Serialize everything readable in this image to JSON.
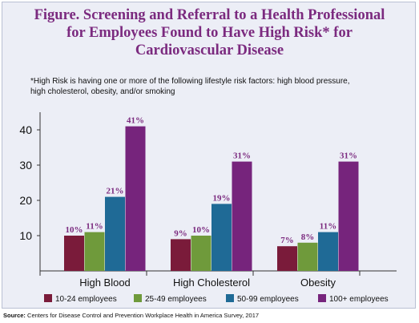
{
  "title_lines": [
    "Figure. Screening and Referral to a Health Professional",
    "for Employees Found to Have High Risk* for",
    "Cardiovascular Disease"
  ],
  "note_lines": [
    "*High Risk is having one or more of the following lifestyle risk factors: high blood pressure,",
    "high cholesterol, obesity, and/or smoking"
  ],
  "source": {
    "label": "Source:",
    "text": "Centers for Disease Control and Prevention Workplace Health in America Survey, 2017"
  },
  "colors": {
    "title": "#7b2a7f",
    "label": "#7b2a7f",
    "axis": "#333333"
  },
  "chart_data": {
    "type": "bar",
    "categories": [
      "High Blood",
      "High Cholesterol",
      "Obesity"
    ],
    "series": [
      {
        "name": "10-24 employees",
        "color": "#7a1b3a",
        "values": [
          10,
          9,
          7
        ],
        "labels": [
          "10%",
          "9%",
          "7%"
        ]
      },
      {
        "name": "25-49 employees",
        "color": "#6f9a3b",
        "values": [
          11,
          10,
          8
        ],
        "labels": [
          "11%",
          "10%",
          "8%"
        ]
      },
      {
        "name": "50-99 employees",
        "color": "#1f6a96",
        "values": [
          21,
          19,
          11
        ],
        "labels": [
          "21%",
          "19%",
          "11%"
        ]
      },
      {
        "name": "100+ employees",
        "color": "#76247c",
        "values": [
          41,
          31,
          31
        ],
        "labels": [
          "41%",
          "31%",
          "31%"
        ]
      }
    ],
    "yticks": [
      10,
      20,
      30,
      40
    ],
    "ylim": [
      0,
      45
    ],
    "grid": false,
    "legend": "bottom"
  }
}
